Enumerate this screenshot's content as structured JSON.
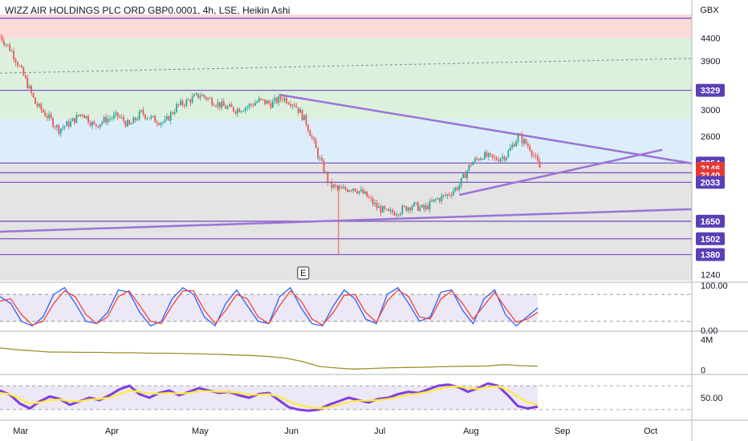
{
  "header": {
    "title": "WIZZ AIR HOLDINGS PLC ORD GBP0.0001, 4h, LSE, Heikin Ashi",
    "currency": "GBX"
  },
  "earnings_marker": "E",
  "colors": {
    "up": "#26a69a",
    "down": "#ef5350",
    "trendline": "#9c73d6",
    "hline": "#7e57c2",
    "zone_red": "#fbdada",
    "zone_green": "#dcf0de",
    "zone_blue": "#dbeefa",
    "zone_grey": "#e4e4e4",
    "price_badge": "#e53935",
    "stoch_k": "#2962ff",
    "stoch_d": "#f44336",
    "volume_line": "#9a8f2a",
    "rsi_line": "#7e3fe0",
    "rsi_ma": "#ffeb3b"
  },
  "chart_data": [
    {
      "type": "candlestick",
      "title": "WIZZ AIR HOLDINGS PLC ORD GBP0.0001, 4h, LSE, Heikin Ashi",
      "y_scale": "log",
      "y_ticks": [
        1240,
        1500,
        1650,
        2000,
        2146,
        2600,
        3000,
        3329,
        3900,
        4400
      ],
      "y_tick_labels": [
        "1240",
        "",
        "",
        "",
        "",
        "2600",
        "3000",
        "",
        "3900",
        "4400"
      ],
      "x_ticks": [
        "Mar",
        "Apr",
        "May",
        "Jun",
        "Jul",
        "Aug",
        "Sep",
        "Oct"
      ],
      "x_range": [
        "2021-02-22",
        "2021-10-15"
      ],
      "ylim": [
        1200,
        5000
      ],
      "horizontal_levels": [
        4900,
        3329,
        2254,
        2140,
        2033,
        1650,
        1502,
        1380
      ],
      "level_badges": [
        {
          "label": "3329",
          "value": 3329,
          "color": "#5b3fb5"
        },
        {
          "label": "2254",
          "value": 2254,
          "color": "#5b3fb5"
        },
        {
          "label": "2146",
          "value": 2190,
          "color": "#e53935"
        },
        {
          "label": "2140",
          "value": 2110,
          "color": "#e53935"
        },
        {
          "label": "2033",
          "value": 2033,
          "color": "#5b3fb5"
        },
        {
          "label": "1650",
          "value": 1650,
          "color": "#5b3fb5"
        },
        {
          "label": "1502",
          "value": 1502,
          "color": "#5b3fb5"
        },
        {
          "label": "1380",
          "value": 1380,
          "color": "#5b3fb5"
        }
      ],
      "zones": [
        {
          "from": 4400,
          "to": 5000,
          "color": "#fbdada"
        },
        {
          "from": 2850,
          "to": 4400,
          "color": "#dcf0de"
        },
        {
          "from": 2254,
          "to": 2850,
          "color": "#dbeefa"
        },
        {
          "from": 1200,
          "to": 2254,
          "color": "#e4e4e4"
        }
      ],
      "trendlines": [
        {
          "from": [
            "2021-05-28",
            3250
          ],
          "to": [
            "2021-10-15",
            2250
          ]
        },
        {
          "from": [
            "2021-07-28",
            1900
          ],
          "to": [
            "2021-10-05",
            2420
          ]
        },
        {
          "from": [
            "2021-02-22",
            1560
          ],
          "to": [
            "2021-10-15",
            1760
          ]
        },
        {
          "from": [
            "2021-02-22",
            3650
          ],
          "to": [
            "2021-10-15",
            3950
          ],
          "dashed": true
        }
      ],
      "series": [
        {
          "x": [
            "2021-02-22",
            "2021-02-26",
            "2021-03-02",
            "2021-03-06",
            "2021-03-10",
            "2021-03-14",
            "2021-03-18",
            "2021-03-22",
            "2021-03-26",
            "2021-03-30",
            "2021-04-03",
            "2021-04-07",
            "2021-04-11",
            "2021-04-15",
            "2021-04-19",
            "2021-04-23",
            "2021-04-27",
            "2021-05-01",
            "2021-05-05",
            "2021-05-09",
            "2021-05-13",
            "2021-05-17",
            "2021-05-21",
            "2021-05-25",
            "2021-05-29",
            "2021-06-02",
            "2021-06-06",
            "2021-06-10",
            "2021-06-14",
            "2021-06-18",
            "2021-06-22",
            "2021-06-26",
            "2021-06-30",
            "2021-07-04",
            "2021-07-08",
            "2021-07-12",
            "2021-07-16",
            "2021-07-20",
            "2021-07-24",
            "2021-07-28",
            "2021-08-01",
            "2021-08-05",
            "2021-08-09",
            "2021-08-13",
            "2021-08-17",
            "2021-08-21",
            "2021-08-25"
          ],
          "close": [
            4450,
            4100,
            3600,
            3100,
            2900,
            2700,
            2800,
            2950,
            2750,
            2850,
            2900,
            2750,
            2950,
            2850,
            2800,
            3050,
            3150,
            3250,
            3150,
            3050,
            3000,
            3050,
            3150,
            3100,
            3200,
            3100,
            2800,
            2350,
            2000,
            1950,
            1980,
            1900,
            1780,
            1720,
            1750,
            1800,
            1760,
            1850,
            1900,
            2000,
            2250,
            2350,
            2300,
            2350,
            2600,
            2450,
            2146
          ]
        }
      ]
    },
    {
      "type": "line",
      "title": "",
      "ylim": [
        0,
        100
      ],
      "y_ticks": [
        0.0,
        100.0
      ],
      "y_tick_labels": [
        "0.00",
        "100.00"
      ],
      "bands": [
        20,
        80
      ],
      "series": [
        {
          "values": [
            75,
            60,
            20,
            10,
            30,
            80,
            95,
            60,
            20,
            15,
            40,
            90,
            85,
            40,
            10,
            20,
            70,
            95,
            80,
            30,
            10,
            60,
            90,
            55,
            20,
            15,
            75,
            95,
            50,
            15,
            10,
            55,
            90,
            70,
            25,
            15,
            80,
            95,
            60,
            20,
            30,
            85,
            90,
            45,
            15,
            70,
            90,
            35,
            10,
            30,
            50
          ]
        },
        {
          "values": [
            65,
            70,
            35,
            12,
            20,
            60,
            88,
            75,
            35,
            15,
            30,
            75,
            88,
            55,
            20,
            15,
            55,
            88,
            88,
            45,
            15,
            45,
            80,
            70,
            30,
            15,
            55,
            88,
            65,
            25,
            12,
            40,
            78,
            80,
            40,
            18,
            65,
            90,
            75,
            30,
            25,
            70,
            88,
            60,
            25,
            55,
            85,
            50,
            18,
            25,
            40
          ]
        }
      ]
    },
    {
      "type": "line",
      "title": "",
      "y_ticks": [
        0,
        4000000
      ],
      "y_tick_labels": [
        "0",
        "4M"
      ],
      "ylim": [
        -500000,
        5000000
      ],
      "series": [
        {
          "values": [
            2900000,
            2650000,
            2500000,
            2350000,
            2350000,
            2300000,
            2300000,
            2250000,
            2250000,
            2200000,
            2200000,
            2150000,
            2100000,
            2050000,
            1950000,
            1900000,
            1750000,
            1550000,
            1100000,
            450000,
            250000,
            100000,
            180000,
            250000,
            300000,
            340000,
            400000,
            450000,
            480000,
            500000,
            700000,
            550000,
            480000
          ]
        }
      ]
    },
    {
      "type": "line",
      "title": "",
      "ylim": [
        15,
        85
      ],
      "y_ticks": [
        50.0
      ],
      "y_tick_labels": [
        "50.00"
      ],
      "bands": [
        30,
        70
      ],
      "series": [
        {
          "values": [
            62,
            55,
            40,
            32,
            44,
            52,
            48,
            38,
            44,
            50,
            46,
            54,
            64,
            70,
            56,
            50,
            58,
            62,
            54,
            60,
            66,
            62,
            58,
            60,
            54,
            50,
            56,
            58,
            46,
            34,
            30,
            28,
            30,
            38,
            44,
            50,
            46,
            42,
            48,
            50,
            56,
            60,
            58,
            64,
            70,
            72,
            68,
            60,
            66,
            74,
            70,
            54,
            36,
            32,
            35
          ]
        },
        {
          "values": [
            58,
            56,
            48,
            40,
            42,
            46,
            47,
            44,
            44,
            47,
            48,
            50,
            56,
            62,
            60,
            57,
            57,
            58,
            57,
            58,
            61,
            61,
            60,
            60,
            58,
            55,
            55,
            56,
            52,
            44,
            38,
            34,
            32,
            34,
            38,
            43,
            45,
            45,
            46,
            48,
            51,
            55,
            57,
            60,
            64,
            68,
            69,
            66,
            65,
            68,
            69,
            63,
            52,
            42,
            38
          ]
        }
      ]
    }
  ]
}
